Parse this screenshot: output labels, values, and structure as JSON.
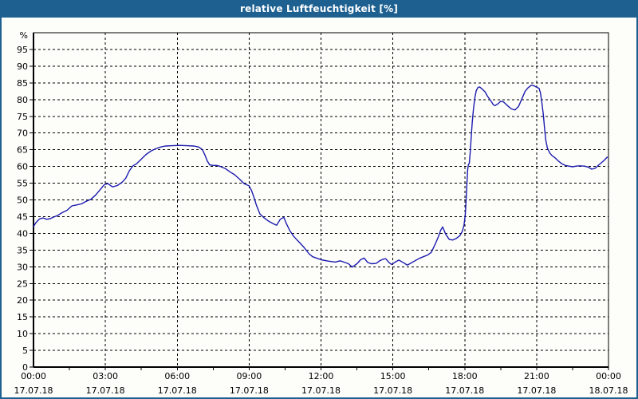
{
  "window": {
    "title": "relative Luftfeuchtigkeit [%]",
    "title_bar_color": "#1e6191",
    "border_color": "#1e6191",
    "background_color": "#fdfdfa"
  },
  "chart_data": {
    "type": "line",
    "title": "relative Luftfeuchtigkeit [%]",
    "ylabel": "%",
    "xlabel": "",
    "ylim": [
      0,
      100
    ],
    "y_ticks": [
      0,
      5,
      10,
      15,
      20,
      25,
      30,
      35,
      40,
      45,
      50,
      55,
      60,
      65,
      70,
      75,
      80,
      85,
      90,
      95
    ],
    "x_range_hours": [
      0,
      24
    ],
    "x_major_step_hours": 3,
    "x_minor_tick_hours": 1.5,
    "grid": "dashed",
    "grid_color": "#000000",
    "legend": "none",
    "x_ticks": [
      {
        "time": "00:00",
        "date": "17.07.18"
      },
      {
        "time": "03:00",
        "date": "17.07.18"
      },
      {
        "time": "06:00",
        "date": "17.07.18"
      },
      {
        "time": "09:00",
        "date": "17.07.18"
      },
      {
        "time": "12:00",
        "date": "17.07.18"
      },
      {
        "time": "15:00",
        "date": "17.07.18"
      },
      {
        "time": "18:00",
        "date": "17.07.18"
      },
      {
        "time": "21:00",
        "date": "17.07.18"
      },
      {
        "time": "00:00",
        "date": "18.07.18"
      }
    ],
    "series": [
      {
        "name": "relative Luftfeuchtigkeit",
        "color": "#1b1baf",
        "points": [
          [
            0.0,
            42.0
          ],
          [
            0.1,
            43.2
          ],
          [
            0.25,
            44.3
          ],
          [
            0.4,
            44.6
          ],
          [
            0.55,
            44.2
          ],
          [
            0.7,
            44.4
          ],
          [
            0.85,
            44.9
          ],
          [
            1.0,
            45.3
          ],
          [
            1.2,
            46.2
          ],
          [
            1.4,
            46.9
          ],
          [
            1.6,
            48.2
          ],
          [
            1.8,
            48.5
          ],
          [
            2.0,
            48.8
          ],
          [
            2.2,
            49.6
          ],
          [
            2.4,
            50.2
          ],
          [
            2.6,
            51.5
          ],
          [
            2.8,
            53.2
          ],
          [
            2.95,
            54.5
          ],
          [
            3.1,
            54.9
          ],
          [
            3.3,
            53.9
          ],
          [
            3.5,
            54.3
          ],
          [
            3.7,
            55.3
          ],
          [
            3.85,
            56.5
          ],
          [
            4.0,
            58.7
          ],
          [
            4.15,
            60.2
          ],
          [
            4.3,
            60.8
          ],
          [
            4.5,
            62.2
          ],
          [
            4.7,
            63.6
          ],
          [
            4.9,
            64.6
          ],
          [
            5.1,
            65.3
          ],
          [
            5.3,
            65.8
          ],
          [
            5.5,
            66.1
          ],
          [
            5.8,
            66.2
          ],
          [
            6.1,
            66.3
          ],
          [
            6.4,
            66.2
          ],
          [
            6.7,
            66.1
          ],
          [
            6.9,
            65.8
          ],
          [
            7.05,
            65.0
          ],
          [
            7.15,
            63.5
          ],
          [
            7.25,
            61.7
          ],
          [
            7.35,
            60.5
          ],
          [
            7.5,
            60.3
          ],
          [
            7.65,
            60.3
          ],
          [
            7.8,
            60.0
          ],
          [
            8.0,
            59.4
          ],
          [
            8.2,
            58.4
          ],
          [
            8.4,
            57.5
          ],
          [
            8.6,
            56.2
          ],
          [
            8.8,
            54.8
          ],
          [
            9.0,
            54.2
          ],
          [
            9.1,
            52.8
          ],
          [
            9.2,
            50.8
          ],
          [
            9.3,
            48.5
          ],
          [
            9.45,
            45.8
          ],
          [
            9.6,
            44.8
          ],
          [
            9.8,
            43.7
          ],
          [
            10.0,
            42.9
          ],
          [
            10.15,
            42.4
          ],
          [
            10.3,
            44.2
          ],
          [
            10.45,
            44.8
          ],
          [
            10.55,
            43.0
          ],
          [
            10.7,
            40.8
          ],
          [
            10.85,
            39.2
          ],
          [
            11.0,
            38.0
          ],
          [
            11.15,
            36.9
          ],
          [
            11.3,
            35.7
          ],
          [
            11.5,
            33.9
          ],
          [
            11.65,
            33.0
          ],
          [
            11.85,
            32.5
          ],
          [
            12.0,
            32.1
          ],
          [
            12.3,
            31.7
          ],
          [
            12.6,
            31.4
          ],
          [
            12.8,
            31.8
          ],
          [
            13.0,
            31.3
          ],
          [
            13.15,
            30.9
          ],
          [
            13.3,
            29.9
          ],
          [
            13.5,
            30.9
          ],
          [
            13.65,
            32.1
          ],
          [
            13.8,
            32.6
          ],
          [
            13.95,
            31.3
          ],
          [
            14.1,
            30.9
          ],
          [
            14.3,
            31.0
          ],
          [
            14.45,
            31.8
          ],
          [
            14.6,
            32.3
          ],
          [
            14.7,
            32.4
          ],
          [
            14.85,
            31.2
          ],
          [
            14.95,
            30.7
          ],
          [
            15.1,
            31.4
          ],
          [
            15.25,
            32.0
          ],
          [
            15.45,
            31.2
          ],
          [
            15.6,
            30.5
          ],
          [
            15.8,
            31.3
          ],
          [
            15.95,
            31.9
          ],
          [
            16.1,
            32.5
          ],
          [
            16.3,
            33.1
          ],
          [
            16.45,
            33.5
          ],
          [
            16.6,
            34.3
          ],
          [
            16.75,
            36.5
          ],
          [
            16.9,
            39.0
          ],
          [
            17.0,
            41.0
          ],
          [
            17.08,
            41.9
          ],
          [
            17.2,
            39.8
          ],
          [
            17.35,
            38.2
          ],
          [
            17.5,
            38.0
          ],
          [
            17.65,
            38.5
          ],
          [
            17.8,
            39.3
          ],
          [
            17.9,
            40.6
          ],
          [
            17.97,
            42.4
          ],
          [
            18.02,
            45.5
          ],
          [
            18.06,
            50.5
          ],
          [
            18.09,
            55.0
          ],
          [
            18.12,
            59.0
          ],
          [
            18.15,
            60.5
          ],
          [
            18.19,
            61.0
          ],
          [
            18.23,
            64.5
          ],
          [
            18.27,
            69.0
          ],
          [
            18.31,
            73.0
          ],
          [
            18.36,
            77.0
          ],
          [
            18.42,
            80.5
          ],
          [
            18.48,
            82.7
          ],
          [
            18.55,
            83.6
          ],
          [
            18.62,
            83.8
          ],
          [
            18.72,
            83.2
          ],
          [
            18.85,
            82.3
          ],
          [
            18.95,
            81.0
          ],
          [
            19.1,
            79.5
          ],
          [
            19.2,
            78.4
          ],
          [
            19.27,
            78.2
          ],
          [
            19.4,
            78.8
          ],
          [
            19.5,
            79.5
          ],
          [
            19.62,
            79.3
          ],
          [
            19.8,
            78.1
          ],
          [
            19.95,
            77.2
          ],
          [
            20.1,
            76.9
          ],
          [
            20.25,
            78.0
          ],
          [
            20.4,
            80.5
          ],
          [
            20.52,
            82.5
          ],
          [
            20.65,
            83.6
          ],
          [
            20.78,
            84.3
          ],
          [
            20.9,
            84.1
          ],
          [
            21.0,
            83.7
          ],
          [
            21.1,
            83.4
          ],
          [
            21.16,
            82.0
          ],
          [
            21.22,
            79.0
          ],
          [
            21.28,
            75.5
          ],
          [
            21.33,
            71.5
          ],
          [
            21.38,
            68.0
          ],
          [
            21.45,
            65.5
          ],
          [
            21.55,
            64.0
          ],
          [
            21.65,
            63.2
          ],
          [
            21.75,
            62.7
          ],
          [
            21.9,
            61.7
          ],
          [
            22.05,
            60.8
          ],
          [
            22.2,
            60.3
          ],
          [
            22.35,
            60.1
          ],
          [
            22.5,
            59.9
          ],
          [
            22.65,
            60.1
          ],
          [
            22.8,
            60.2
          ],
          [
            23.0,
            60.1
          ],
          [
            23.15,
            59.8
          ],
          [
            23.3,
            59.2
          ],
          [
            23.45,
            59.5
          ],
          [
            23.6,
            60.5
          ],
          [
            23.8,
            61.7
          ],
          [
            23.95,
            62.8
          ]
        ]
      }
    ]
  }
}
